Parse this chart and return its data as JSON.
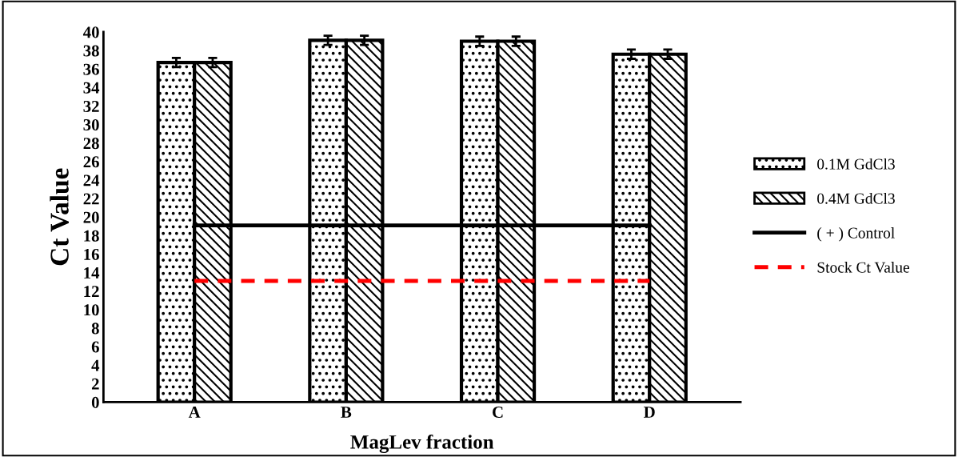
{
  "chart_data": {
    "type": "bar",
    "xlabel": "MagLev fraction",
    "ylabel": "Ct Value",
    "categories": [
      "A",
      "B",
      "C",
      "D"
    ],
    "series": [
      {
        "name": "0.1M GdCl3",
        "color": "#000000",
        "values": [
          36.7,
          39.1,
          39.0,
          37.6
        ],
        "errors": [
          0.5,
          0.5,
          0.5,
          0.5
        ]
      },
      {
        "name": "0.4M GdCl3",
        "color": "#000000",
        "values": [
          36.7,
          39.1,
          39.0,
          37.6
        ],
        "errors": [
          0.5,
          0.5,
          0.5,
          0.5
        ]
      },
      {
        "name": "( + ) Control",
        "type": "line",
        "color": "#000000",
        "line_style": "solid",
        "values": [
          19.1,
          19.1,
          19.1,
          19.1
        ]
      },
      {
        "name": "Stock Ct Value",
        "type": "line",
        "color": "#ff0000",
        "line_style": "dashed",
        "values": [
          13.1,
          13.1,
          13.1,
          13.1
        ]
      }
    ],
    "ylim": [
      0,
      40
    ],
    "yticks": [
      0,
      2,
      4,
      6,
      8,
      10,
      12,
      14,
      16,
      18,
      20,
      22,
      24,
      26,
      28,
      30,
      32,
      34,
      36,
      38,
      40
    ],
    "grid": false,
    "legend": "right",
    "marker": "none"
  }
}
